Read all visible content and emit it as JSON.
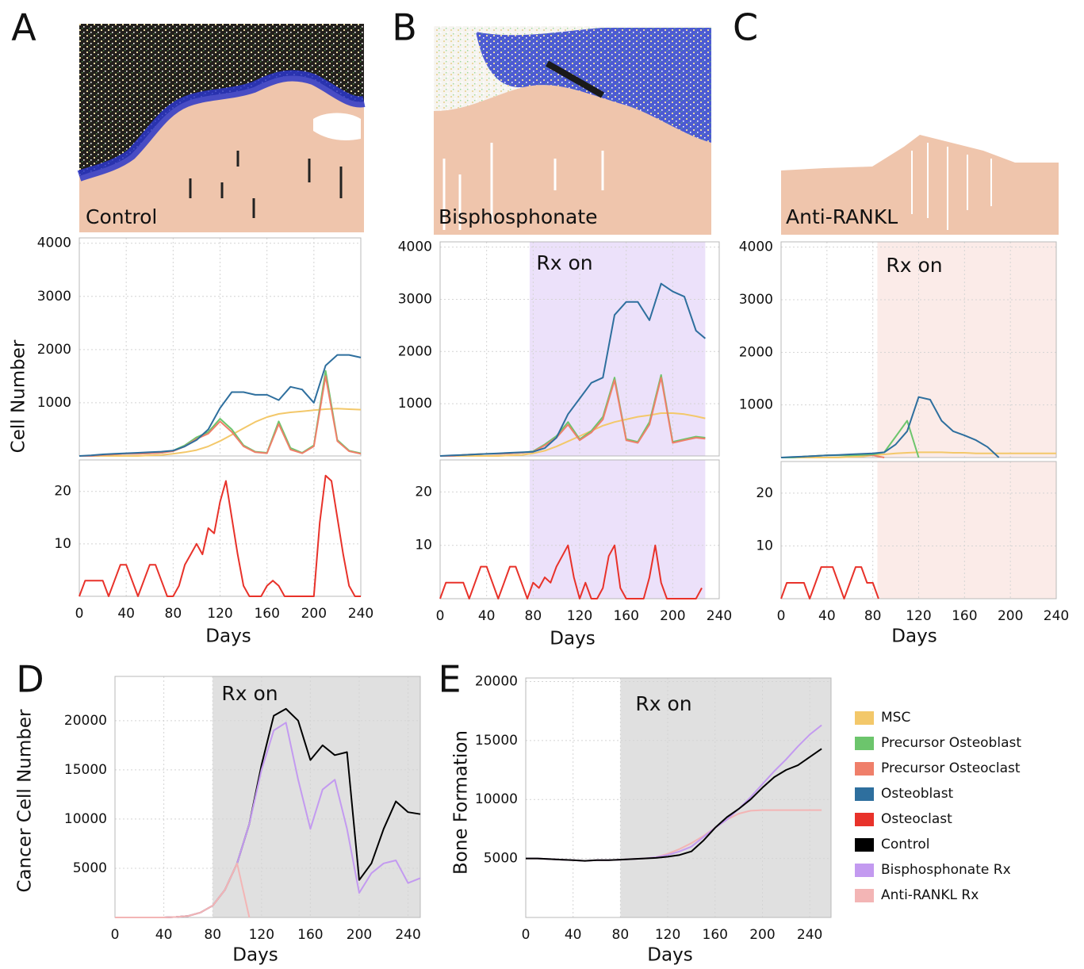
{
  "chart_data": [
    {
      "type": "line",
      "panel": "A",
      "image_label": "Control",
      "ylabel": "Cell Number",
      "x": [
        0,
        10,
        20,
        30,
        40,
        50,
        60,
        70,
        80,
        90,
        100,
        110,
        120,
        130,
        140,
        150,
        160,
        170,
        180,
        190,
        200,
        210,
        220,
        230,
        240
      ],
      "xlim": [
        0,
        240
      ],
      "ylim": [
        0,
        4100
      ],
      "xticks": [
        0,
        40,
        80,
        120,
        160,
        200,
        240
      ],
      "xtick_labels": false,
      "yticks": [
        1000,
        2000,
        3000,
        4000
      ],
      "grid": true,
      "series": [
        {
          "name": "MSC",
          "color": "#f3c86a",
          "values": [
            0,
            0,
            0,
            0,
            0,
            0,
            10,
            20,
            40,
            70,
            110,
            180,
            280,
            400,
            520,
            640,
            730,
            790,
            820,
            840,
            860,
            880,
            890,
            880,
            870
          ]
        },
        {
          "name": "Precursor Osteoblast",
          "color": "#6cc56c",
          "values": [
            0,
            0,
            20,
            30,
            40,
            40,
            50,
            60,
            100,
            200,
            350,
            450,
            700,
            500,
            200,
            80,
            60,
            650,
            150,
            60,
            200,
            1600,
            300,
            100,
            50
          ]
        },
        {
          "name": "Precursor Osteoclast",
          "color": "#ef7f6a",
          "values": [
            0,
            0,
            20,
            30,
            40,
            40,
            50,
            60,
            90,
            180,
            320,
            420,
            650,
            450,
            180,
            70,
            50,
            600,
            120,
            50,
            180,
            1500,
            280,
            90,
            40
          ]
        },
        {
          "name": "Osteoblast",
          "color": "#2e6f9e",
          "values": [
            0,
            10,
            30,
            40,
            50,
            60,
            70,
            80,
            100,
            180,
            300,
            500,
            900,
            1200,
            1200,
            1150,
            1150,
            1050,
            1300,
            1250,
            1000,
            1700,
            1900,
            1900,
            1850
          ]
        }
      ]
    },
    {
      "type": "line",
      "xlabel": "Days",
      "x": [
        0,
        5,
        10,
        15,
        20,
        25,
        30,
        35,
        40,
        45,
        50,
        55,
        60,
        65,
        70,
        75,
        80,
        85,
        90,
        95,
        100,
        105,
        110,
        115,
        120,
        125,
        130,
        135,
        140,
        145,
        150,
        155,
        160,
        165,
        170,
        175,
        180,
        185,
        190,
        195,
        200,
        205,
        210,
        215,
        220,
        225,
        230,
        235,
        240
      ],
      "xlim": [
        0,
        240
      ],
      "ylim": [
        0,
        26
      ],
      "xticks": [
        0,
        40,
        80,
        120,
        160,
        200,
        240
      ],
      "yticks": [
        10,
        20
      ],
      "grid": true,
      "series": [
        {
          "name": "Osteoclast",
          "color": "#e8322a",
          "values": [
            0,
            3,
            3,
            3,
            3,
            0,
            3,
            6,
            6,
            3,
            0,
            3,
            6,
            6,
            3,
            0,
            0,
            2,
            6,
            8,
            10,
            8,
            13,
            12,
            18,
            22,
            15,
            8,
            2,
            0,
            0,
            0,
            2,
            3,
            2,
            0,
            0,
            0,
            0,
            0,
            0,
            14,
            23,
            22,
            15,
            8,
            2,
            0,
            0
          ]
        }
      ]
    },
    {
      "type": "line",
      "panel": "B",
      "image_label": "Bisphosphonate",
      "annotation": "Rx on",
      "shade": {
        "x": [
          77,
          228
        ],
        "color": "#ece1fa"
      },
      "x": [
        0,
        10,
        20,
        30,
        40,
        50,
        60,
        70,
        80,
        90,
        100,
        110,
        120,
        130,
        140,
        150,
        160,
        170,
        180,
        190,
        200,
        210,
        220,
        228
      ],
      "xlim": [
        0,
        240
      ],
      "ylim": [
        0,
        4100
      ],
      "xticks": [
        0,
        40,
        80,
        120,
        160,
        200,
        240
      ],
      "xtick_labels": false,
      "yticks": [
        1000,
        2000,
        3000,
        4000
      ],
      "grid": true,
      "series": [
        {
          "color": "#f3c86a",
          "values": [
            0,
            0,
            0,
            0,
            0,
            0,
            10,
            20,
            50,
            100,
            180,
            280,
            380,
            480,
            580,
            650,
            700,
            750,
            780,
            820,
            820,
            800,
            760,
            720
          ]
        },
        {
          "color": "#6cc56c",
          "values": [
            0,
            0,
            20,
            30,
            40,
            40,
            50,
            60,
            90,
            220,
            380,
            650,
            320,
            480,
            750,
            1500,
            320,
            270,
            650,
            1550,
            270,
            320,
            370,
            350
          ]
        },
        {
          "color": "#ef7f6a",
          "values": [
            0,
            0,
            20,
            30,
            40,
            40,
            50,
            60,
            80,
            200,
            350,
            600,
            300,
            450,
            700,
            1450,
            300,
            250,
            600,
            1500,
            250,
            300,
            350,
            330
          ]
        },
        {
          "color": "#2e6f9e",
          "values": [
            0,
            10,
            20,
            30,
            40,
            50,
            60,
            70,
            80,
            150,
            350,
            800,
            1100,
            1400,
            1500,
            2700,
            2950,
            2950,
            2600,
            3300,
            3150,
            3050,
            2400,
            2250
          ]
        }
      ]
    },
    {
      "type": "line",
      "xlabel": "Days",
      "shade": {
        "x": [
          77,
          228
        ],
        "color": "#ece1fa"
      },
      "x": [
        0,
        5,
        10,
        15,
        20,
        25,
        30,
        35,
        40,
        45,
        50,
        55,
        60,
        65,
        70,
        75,
        80,
        85,
        90,
        95,
        100,
        105,
        110,
        115,
        120,
        125,
        130,
        135,
        140,
        145,
        150,
        155,
        160,
        165,
        170,
        175,
        180,
        185,
        190,
        195,
        200,
        205,
        210,
        215,
        220,
        225
      ],
      "xlim": [
        0,
        240
      ],
      "ylim": [
        0,
        26
      ],
      "xticks": [
        0,
        40,
        80,
        120,
        160,
        200,
        240
      ],
      "yticks": [
        10,
        20
      ],
      "grid": true,
      "series": [
        {
          "color": "#e8322a",
          "values": [
            0,
            3,
            3,
            3,
            3,
            0,
            3,
            6,
            6,
            3,
            0,
            3,
            6,
            6,
            3,
            0,
            3,
            2,
            4,
            3,
            6,
            8,
            10,
            4,
            0,
            3,
            0,
            0,
            2,
            8,
            10,
            2,
            0,
            0,
            0,
            0,
            4,
            10,
            3,
            0,
            0,
            0,
            0,
            0,
            0,
            2
          ]
        }
      ]
    },
    {
      "type": "line",
      "panel": "C",
      "image_label": "Anti-RANKL",
      "annotation": "Rx on",
      "shade": {
        "x": [
          84,
          240
        ],
        "color": "#fbebe8"
      },
      "x": [
        0,
        10,
        20,
        30,
        40,
        50,
        60,
        70,
        80,
        90,
        100,
        110,
        120,
        130,
        140,
        150,
        160,
        170,
        180,
        190,
        200,
        210,
        220,
        230,
        240
      ],
      "xlim": [
        0,
        240
      ],
      "ylim": [
        0,
        4100
      ],
      "xticks": [
        0,
        40,
        80,
        120,
        160,
        200,
        240
      ],
      "xtick_labels": false,
      "yticks": [
        1000,
        2000,
        3000,
        4000
      ],
      "grid": true,
      "series": [
        {
          "color": "#f3c86a",
          "values": [
            0,
            0,
            0,
            0,
            0,
            0,
            10,
            20,
            40,
            60,
            80,
            90,
            100,
            100,
            100,
            90,
            90,
            80,
            80,
            80,
            80,
            80,
            80,
            80,
            80
          ]
        },
        {
          "color": "#ef7f6a",
          "values": [
            0,
            0,
            20,
            30,
            40,
            40,
            40,
            50,
            40,
            0,
            null,
            null,
            null,
            null,
            null,
            null,
            null,
            null,
            null,
            null,
            null,
            null,
            null,
            null,
            null
          ]
        },
        {
          "color": "#6cc56c",
          "values": [
            0,
            0,
            20,
            30,
            40,
            40,
            40,
            50,
            60,
            100,
            400,
            700,
            0,
            null,
            null,
            null,
            null,
            null,
            null,
            null,
            null,
            null,
            null,
            null,
            null
          ]
        },
        {
          "color": "#2e6f9e",
          "values": [
            0,
            10,
            20,
            30,
            40,
            50,
            60,
            70,
            80,
            100,
            250,
            500,
            1150,
            1100,
            700,
            500,
            420,
            330,
            200,
            0,
            null,
            null,
            null,
            null,
            null
          ]
        }
      ]
    },
    {
      "type": "line",
      "xlabel": "Days",
      "shade": {
        "x": [
          84,
          240
        ],
        "color": "#fbebe8"
      },
      "x": [
        0,
        5,
        10,
        15,
        20,
        25,
        30,
        35,
        40,
        45,
        50,
        55,
        60,
        65,
        70,
        75,
        80,
        85
      ],
      "xlim": [
        0,
        240
      ],
      "ylim": [
        0,
        26
      ],
      "xticks": [
        0,
        40,
        80,
        120,
        160,
        200,
        240
      ],
      "yticks": [
        10,
        20
      ],
      "grid": true,
      "series": [
        {
          "color": "#e8322a",
          "values": [
            0,
            3,
            3,
            3,
            3,
            0,
            3,
            6,
            6,
            6,
            3,
            0,
            3,
            6,
            6,
            3,
            3,
            0
          ]
        }
      ]
    },
    {
      "type": "line",
      "panel": "D",
      "ylabel": "Cancer Cell Number",
      "xlabel": "Days",
      "annotation": "Rx on",
      "shade": {
        "x": [
          80,
          250
        ],
        "color": "#e0e0e0"
      },
      "x": [
        0,
        10,
        20,
        30,
        40,
        50,
        60,
        70,
        80,
        90,
        100,
        110,
        120,
        130,
        140,
        150,
        160,
        170,
        180,
        190,
        200,
        210,
        220,
        230,
        240,
        250
      ],
      "xlim": [
        0,
        250
      ],
      "ylim": [
        0,
        24500
      ],
      "xticks": [
        0,
        40,
        80,
        120,
        160,
        200,
        240
      ],
      "yticks": [
        5000,
        10000,
        15000,
        20000
      ],
      "grid": true,
      "series": [
        {
          "name": "Control",
          "color": "#000000",
          "values": [
            0,
            0,
            0,
            0,
            0,
            50,
            150,
            500,
            1200,
            2800,
            5500,
            9500,
            15500,
            20500,
            21200,
            20000,
            16000,
            17500,
            16500,
            16800,
            3800,
            5500,
            9000,
            11800,
            10700,
            10500
          ]
        },
        {
          "name": "Bisphosphonate Rx",
          "color": "#c39af0",
          "values": [
            0,
            0,
            0,
            0,
            0,
            50,
            150,
            500,
            1200,
            2800,
            5500,
            9500,
            15000,
            19000,
            19800,
            14000,
            9000,
            13000,
            14000,
            9000,
            2500,
            4500,
            5500,
            5800,
            3500,
            4000
          ]
        },
        {
          "name": "Anti-RANKL Rx",
          "color": "#f3b5b5",
          "values": [
            0,
            0,
            0,
            0,
            0,
            50,
            150,
            500,
            1200,
            2800,
            5500,
            0,
            null,
            null,
            null,
            null,
            null,
            null,
            null,
            null,
            null,
            null,
            null,
            null,
            null,
            null
          ]
        }
      ]
    },
    {
      "type": "line",
      "panel": "E",
      "ylabel": "Bone Formation",
      "xlabel": "Days",
      "annotation": "Rx on",
      "shade": {
        "x": [
          80,
          258
        ],
        "color": "#e0e0e0"
      },
      "x": [
        0,
        10,
        20,
        30,
        40,
        50,
        60,
        70,
        80,
        90,
        100,
        110,
        120,
        130,
        140,
        150,
        160,
        170,
        180,
        190,
        200,
        210,
        220,
        230,
        240,
        250
      ],
      "xlim": [
        0,
        258
      ],
      "ylim": [
        0,
        20300
      ],
      "xticks": [
        0,
        40,
        80,
        120,
        160,
        200,
        240
      ],
      "yticks": [
        5000,
        10000,
        15000,
        20000
      ],
      "grid": true,
      "series": [
        {
          "color": "#f3b5b5",
          "values": [
            5000,
            5000,
            4950,
            4900,
            4850,
            4800,
            4850,
            4850,
            4900,
            4950,
            5000,
            5100,
            5400,
            5800,
            6300,
            6900,
            7600,
            8300,
            8800,
            9050,
            9100,
            9100,
            9100,
            9100,
            9100,
            9100
          ]
        },
        {
          "color": "#c39af0",
          "values": [
            5000,
            5000,
            4950,
            4900,
            4850,
            4800,
            4850,
            4850,
            4900,
            4950,
            5000,
            5100,
            5300,
            5600,
            6000,
            6800,
            7600,
            8300,
            9200,
            10200,
            11300,
            12400,
            13400,
            14500,
            15500,
            16300
          ]
        },
        {
          "color": "#000000",
          "values": [
            5000,
            5000,
            4950,
            4900,
            4850,
            4800,
            4850,
            4850,
            4900,
            4950,
            5000,
            5050,
            5150,
            5300,
            5600,
            6500,
            7600,
            8500,
            9200,
            10000,
            11000,
            11900,
            12500,
            12900,
            13600,
            14300
          ]
        }
      ]
    }
  ]
}
